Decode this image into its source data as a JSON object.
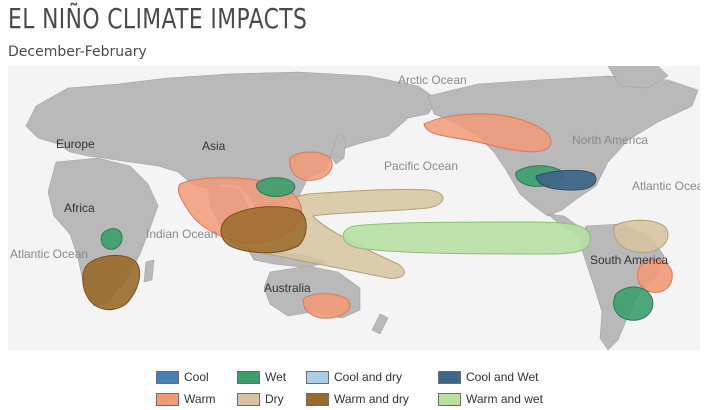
{
  "title": "EL NIÑO CLIMATE IMPACTS",
  "subtitle": "December-February",
  "colors": {
    "cool": "#4a7fb5",
    "warm": "#f29a78",
    "wet": "#3a9e6e",
    "dry": "#d6c4a0",
    "cool_and_dry": "#a8cfe6",
    "warm_and_dry": "#9a6a2a",
    "cool_and_wet": "#3f6688",
    "warm_and_wet": "#b8e0a4",
    "ocean": "#f4f4f4",
    "land": "#b9b9b9"
  },
  "map_labels": {
    "europe": "Europe",
    "asia": "Asia",
    "arctic_ocean": "Arctic Ocean",
    "north_america": "North America",
    "pacific_ocean": "Pacific Ocean",
    "atlantic_ocean_east": "Atlantic Ocean",
    "africa": "Africa",
    "indian_ocean": "Indian Ocean",
    "atlantic_ocean_west": "Atlantic Ocean",
    "south_america": "South America",
    "australia": "Australia"
  },
  "legend": [
    {
      "key": "cool",
      "label": "Cool",
      "color": "#4a7fb5"
    },
    {
      "key": "wet",
      "label": "Wet",
      "color": "#3a9e6e"
    },
    {
      "key": "cool_and_dry",
      "label": "Cool and dry",
      "color": "#a8cfe6"
    },
    {
      "key": "cool_and_wet",
      "label": "Cool and Wet",
      "color": "#3f6688"
    },
    {
      "key": "warm",
      "label": "Warm",
      "color": "#f29a78"
    },
    {
      "key": "dry",
      "label": "Dry",
      "color": "#d6c4a0"
    },
    {
      "key": "warm_and_dry",
      "label": "Warm and dry",
      "color": "#9a6a2a"
    },
    {
      "key": "warm_and_wet",
      "label": "Warm and wet",
      "color": "#b8e0a4"
    }
  ]
}
